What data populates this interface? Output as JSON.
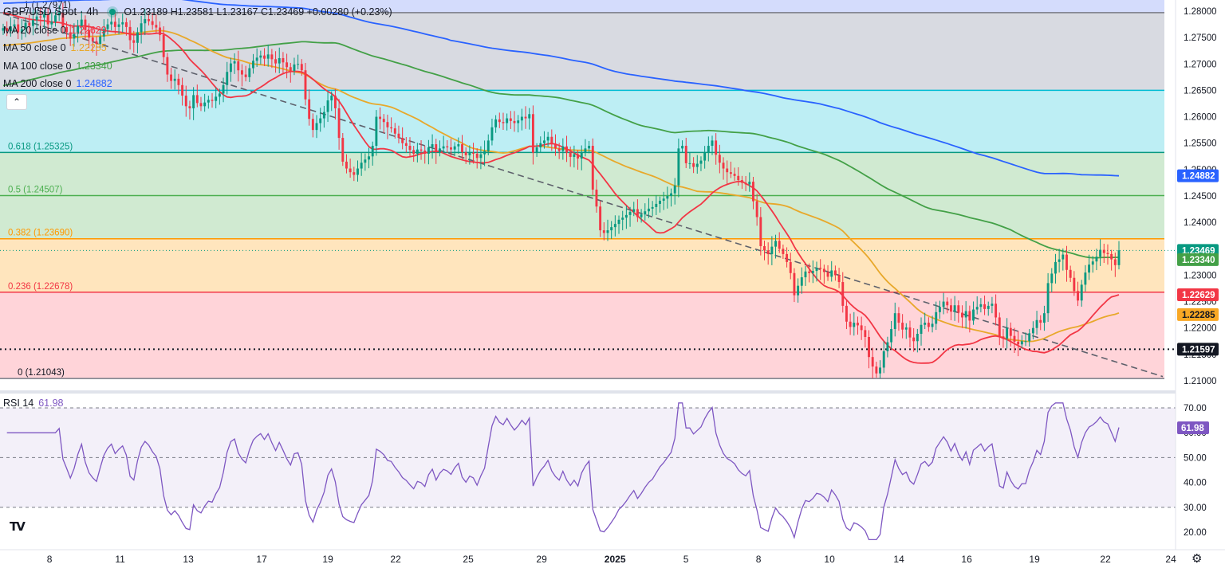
{
  "header": {
    "title": "GBP/USD Spot · 4h",
    "ohlc": "O1.23189 H1.23581 L1.23167 C1.23469 +0.00280 (+0.23%)"
  },
  "ma_legend": [
    {
      "label": "MA 20 close 0",
      "value": "1.22629",
      "color": "#f23645"
    },
    {
      "label": "MA 50 close 0",
      "value": "1.22285",
      "color": "#e8a82a"
    },
    {
      "label": "MA 100 close 0",
      "value": "1.23340",
      "color": "#43a047"
    },
    {
      "label": "MA 200 close 0",
      "value": "1.24882",
      "color": "#2962ff"
    }
  ],
  "rsi_legend": {
    "label": "RSI 14",
    "value": "61.98"
  },
  "icons": {
    "collapse": "chevron-up-icon",
    "logo": "tradingview-logo-icon",
    "settings": "gear-icon"
  },
  "chart_data": [
    {
      "type": "candlestick",
      "title": "GBP/USD Spot · 4h",
      "y_range": [
        1.2085,
        1.2812
      ],
      "price_ticks": [
        "1.28000",
        "1.27500",
        "1.27000",
        "1.26500",
        "1.26000",
        "1.25500",
        "1.25000",
        "1.24500",
        "1.24000",
        "1.23500",
        "1.23000",
        "1.22500",
        "1.22000",
        "1.21500",
        "1.21000"
      ],
      "x_ticks": [
        "8",
        "11",
        "13",
        "17",
        "19",
        "22",
        "25",
        "29",
        "2025",
        "5",
        "8",
        "10",
        "14",
        "16",
        "19",
        "22",
        "24"
      ],
      "fib_levels": [
        {
          "label": "1 (1.27971)",
          "value": 1.27971,
          "color": "#787b86"
        },
        {
          "label": "",
          "value": 1.265,
          "color": "#00bcd4"
        },
        {
          "label": "0.618 (1.25325)",
          "value": 1.25325,
          "color": "#089981"
        },
        {
          "label": "0.5 (1.24507)",
          "value": 1.24507,
          "color": "#4caf50"
        },
        {
          "label": "0.382 (1.23690)",
          "value": 1.2369,
          "color": "#ff9800"
        },
        {
          "label": "0.236 (1.22678)",
          "value": 1.22678,
          "color": "#f23645"
        },
        {
          "label": "0 (1.21043)",
          "value": 1.21043,
          "color": "#787b86"
        }
      ],
      "fib_zone_colors": [
        "#d1d4dc",
        "#b2ebf2",
        "#c8e6c9",
        "#c8e6c9",
        "#ffe0b2",
        "#ffcdd2"
      ],
      "top_band_color": "#cfd8fc",
      "horizontal_support": {
        "value": 1.21597,
        "label": "1.21597"
      },
      "last_price": 1.23469,
      "price_labels": [
        {
          "text": "1.24882",
          "value": 1.24882,
          "color": "#2962ff"
        },
        {
          "text": "1.23469",
          "value": 1.23469,
          "color": "#089981"
        },
        {
          "text": "1.23340",
          "value": 1.2334,
          "color": "#43a047"
        },
        {
          "text": "1.22629",
          "value": 1.22629,
          "color": "#f23645"
        },
        {
          "text": "1.22285",
          "value": 1.22285,
          "color": "#f9a825"
        },
        {
          "text": "1.21597",
          "value": 1.21597,
          "color": "#131722"
        }
      ],
      "trendline": {
        "from": [
          0,
          1.2795
        ],
        "to": [
          270,
          1.2105
        ]
      },
      "closes": [
        1.2768,
        1.2762,
        1.2771,
        1.2775,
        1.276,
        1.2766,
        1.2778,
        1.2772,
        1.2783,
        1.279,
        1.2788,
        1.2794,
        1.2775,
        1.278,
        1.2792,
        1.2797,
        1.277,
        1.276,
        1.2748,
        1.2757,
        1.2772,
        1.2784,
        1.2764,
        1.275,
        1.2743,
        1.2738,
        1.2752,
        1.2766,
        1.2775,
        1.278,
        1.277,
        1.2775,
        1.2779,
        1.277,
        1.2745,
        1.274,
        1.276,
        1.2777,
        1.2785,
        1.2781,
        1.2774,
        1.2769,
        1.2755,
        1.2713,
        1.268,
        1.2668,
        1.2672,
        1.266,
        1.264,
        1.262,
        1.2616,
        1.2641,
        1.2626,
        1.262,
        1.2627,
        1.2632,
        1.263,
        1.2638,
        1.2644,
        1.266,
        1.2685,
        1.2701,
        1.2705,
        1.2688,
        1.268,
        1.2675,
        1.2692,
        1.2706,
        1.2712,
        1.2716,
        1.271,
        1.2718,
        1.2709,
        1.2701,
        1.2711,
        1.2703,
        1.2694,
        1.2687,
        1.2699,
        1.27,
        1.2688,
        1.2633,
        1.2596,
        1.2575,
        1.2588,
        1.2597,
        1.2609,
        1.2631,
        1.264,
        1.2616,
        1.256,
        1.2515,
        1.2502,
        1.2495,
        1.249,
        1.2502,
        1.2513,
        1.2519,
        1.2525,
        1.2545,
        1.26,
        1.2596,
        1.259,
        1.258,
        1.2578,
        1.2568,
        1.256,
        1.255,
        1.2545,
        1.2537,
        1.253,
        1.2538,
        1.2536,
        1.253,
        1.2542,
        1.2548,
        1.2533,
        1.254,
        1.2544,
        1.2542,
        1.2538,
        1.2544,
        1.2548,
        1.2533,
        1.2527,
        1.2532,
        1.253,
        1.2522,
        1.2529,
        1.2535,
        1.2555,
        1.258,
        1.2595,
        1.259,
        1.2588,
        1.2597,
        1.2592,
        1.2588,
        1.2593,
        1.26,
        1.2597,
        1.2605,
        1.2532,
        1.2542,
        1.255,
        1.2555,
        1.2562,
        1.2548,
        1.254,
        1.2535,
        1.2544,
        1.2532,
        1.2524,
        1.2529,
        1.2521,
        1.2533,
        1.254,
        1.2545,
        1.2462,
        1.243,
        1.2385,
        1.238,
        1.2385,
        1.2391,
        1.2397,
        1.2405,
        1.2409,
        1.2414,
        1.242,
        1.2425,
        1.241,
        1.2415,
        1.2421,
        1.2426,
        1.2429,
        1.2435,
        1.2441,
        1.2445,
        1.245,
        1.2455,
        1.247,
        1.254,
        1.2545,
        1.2512,
        1.2512,
        1.2505,
        1.2511,
        1.2517,
        1.2532,
        1.2545,
        1.2555,
        1.2528,
        1.2513,
        1.2502,
        1.2495,
        1.2492,
        1.2488,
        1.248,
        1.2475,
        1.2472,
        1.2477,
        1.244,
        1.241,
        1.2355,
        1.2347,
        1.234,
        1.2354,
        1.2365,
        1.235,
        1.234,
        1.2325,
        1.2304,
        1.2262,
        1.228,
        1.2296,
        1.2307,
        1.2304,
        1.2308,
        1.2314,
        1.2312,
        1.2306,
        1.2297,
        1.2309,
        1.23,
        1.2287,
        1.2242,
        1.2212,
        1.2202,
        1.221,
        1.2205,
        1.2196,
        1.2183,
        1.2145,
        1.2127,
        1.2114,
        1.2125,
        1.2156,
        1.2173,
        1.2198,
        1.2228,
        1.221,
        1.2197,
        1.2201,
        1.2182,
        1.2175,
        1.2189,
        1.2206,
        1.221,
        1.2202,
        1.2208,
        1.223,
        1.224,
        1.225,
        1.2243,
        1.2231,
        1.2243,
        1.2229,
        1.222,
        1.2232,
        1.2214,
        1.2235,
        1.224,
        1.2245,
        1.2236,
        1.2242,
        1.2246,
        1.222,
        1.2184,
        1.218,
        1.22,
        1.2185,
        1.2174,
        1.2169,
        1.2175,
        1.2175,
        1.219,
        1.22,
        1.2215,
        1.221,
        1.2228,
        1.2285,
        1.2303,
        1.2325,
        1.233,
        1.2339,
        1.231,
        1.2295,
        1.227,
        1.2252,
        1.2282,
        1.2305,
        1.232,
        1.2326,
        1.2335,
        1.2348,
        1.2342,
        1.234,
        1.233,
        1.2319,
        1.2347
      ],
      "ma20": {
        "start": [
          0,
          1.2797
        ],
        "end": [
          293,
          1.22629
        ]
      },
      "ma50": {
        "start": [
          0,
          1.2735
        ],
        "end": [
          293,
          1.22285
        ]
      },
      "ma100": {
        "start": [
          0,
          1.2659
        ],
        "end": [
          293,
          1.2334
        ]
      },
      "ma200": {
        "start": [
          0,
          1.2815
        ],
        "end": [
          293,
          1.24882
        ]
      }
    },
    {
      "type": "line",
      "title": "RSI 14",
      "y_range": [
        15,
        73
      ],
      "y_ticks": [
        "70.00",
        "60.00",
        "50.00",
        "40.00",
        "30.00",
        "20.00"
      ],
      "levels": [
        70,
        50,
        30
      ],
      "color": "#7e57c2",
      "last_value": 61.98
    }
  ]
}
